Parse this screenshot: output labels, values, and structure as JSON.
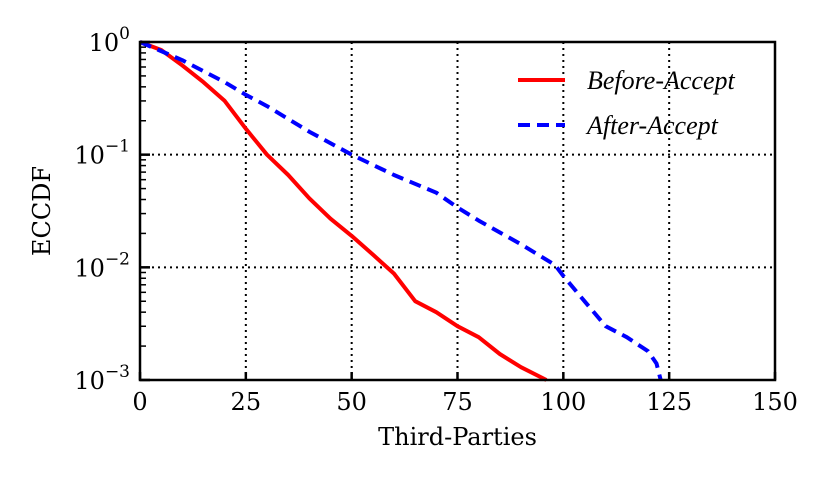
{
  "chart_data": {
    "type": "line",
    "title": "",
    "xlabel": "Third-Parties",
    "ylabel": "ECCDF",
    "xlim": [
      0,
      150
    ],
    "ylim": [
      0.001,
      1
    ],
    "yscale": "log",
    "xticks": [
      0,
      25,
      50,
      75,
      100,
      125,
      150
    ],
    "xtick_labels": [
      "0",
      "25",
      "50",
      "75",
      "100",
      "125",
      "150"
    ],
    "yticks": [
      1,
      0.1,
      0.01,
      0.001
    ],
    "ytick_labels": [
      {
        "base": "10",
        "exp": "0"
      },
      {
        "base": "10",
        "exp": "−1"
      },
      {
        "base": "10",
        "exp": "−2"
      },
      {
        "base": "10",
        "exp": "−3"
      }
    ],
    "grid": true,
    "grid_style": "dotted",
    "legend_position": "upper right",
    "series": [
      {
        "name": "Before-Accept",
        "color": "#ff0000",
        "style": "solid",
        "x": [
          0,
          5,
          10,
          15,
          20,
          25,
          30,
          35,
          40,
          45,
          50,
          55,
          60,
          65,
          70,
          75,
          80,
          85,
          90,
          96
        ],
        "values": [
          1.0,
          0.85,
          0.62,
          0.44,
          0.3,
          0.17,
          0.1,
          0.066,
          0.041,
          0.027,
          0.019,
          0.013,
          0.0088,
          0.005,
          0.004,
          0.003,
          0.0024,
          0.0017,
          0.0013,
          0.001
        ]
      },
      {
        "name": "After-Accept",
        "color": "#0000ff",
        "style": "dashed",
        "x": [
          0,
          10,
          20,
          25,
          30,
          40,
          50,
          60,
          70,
          75,
          80,
          90,
          98,
          100,
          105,
          110,
          115,
          120,
          122,
          123
        ],
        "values": [
          1.0,
          0.69,
          0.44,
          0.34,
          0.27,
          0.16,
          0.1,
          0.066,
          0.046,
          0.034,
          0.026,
          0.016,
          0.0105,
          0.0084,
          0.005,
          0.003,
          0.0024,
          0.0018,
          0.0014,
          0.001
        ]
      }
    ]
  }
}
